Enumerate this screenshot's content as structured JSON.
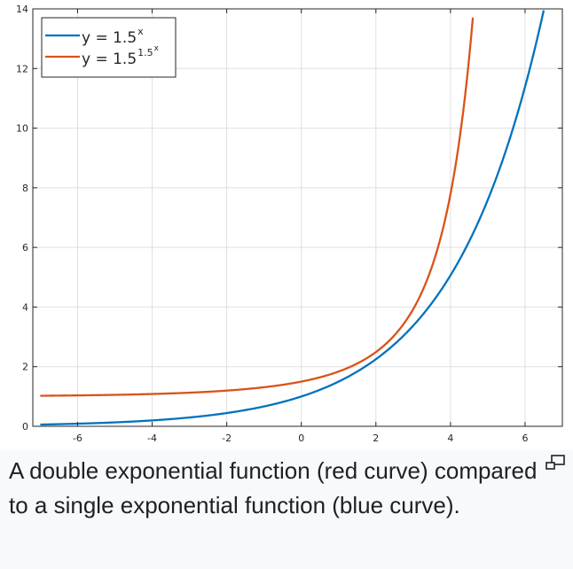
{
  "caption": "A double exponential function (red curve) compared to a single exponential function (blue curve).",
  "enlarge_icon": "enlarge-icon",
  "chart_data": {
    "type": "line",
    "title": "",
    "xlabel": "",
    "ylabel": "",
    "xlim": [
      -7.2,
      7.0
    ],
    "ylim": [
      0,
      14
    ],
    "x_ticks": [
      -6,
      -4,
      -2,
      0,
      2,
      4,
      6
    ],
    "y_ticks": [
      0,
      2,
      4,
      6,
      8,
      10,
      12,
      14
    ],
    "grid": true,
    "legend_position": "top-left",
    "series": [
      {
        "name": "y = 1.5^x",
        "legend_base": "y = 1.5",
        "legend_exp": "x",
        "formula": "1.5^x",
        "color": "#0072bd",
        "x": [
          -7,
          -6,
          -5,
          -4,
          -3,
          -2,
          -1,
          0,
          1,
          2,
          3,
          4,
          5,
          6,
          6.5
        ],
        "y": [
          0.06,
          0.09,
          0.13,
          0.2,
          0.3,
          0.44,
          0.67,
          1.0,
          1.5,
          2.25,
          3.38,
          5.06,
          7.59,
          11.39,
          13.95
        ]
      },
      {
        "name": "y = 1.5^(1.5^x)",
        "legend_base": "y = 1.5",
        "legend_exp": "1.5",
        "legend_exp2": "x",
        "formula": "1.5^(1.5^x)",
        "color": "#d95319",
        "x": [
          -7,
          -6,
          -5,
          -4,
          -3,
          -2,
          -1,
          0,
          1,
          2,
          3,
          4,
          4.5,
          4.6
        ],
        "y": [
          1.02,
          1.04,
          1.05,
          1.08,
          1.13,
          1.2,
          1.31,
          1.5,
          1.84,
          2.49,
          3.93,
          7.79,
          12.38,
          13.73
        ]
      }
    ]
  }
}
